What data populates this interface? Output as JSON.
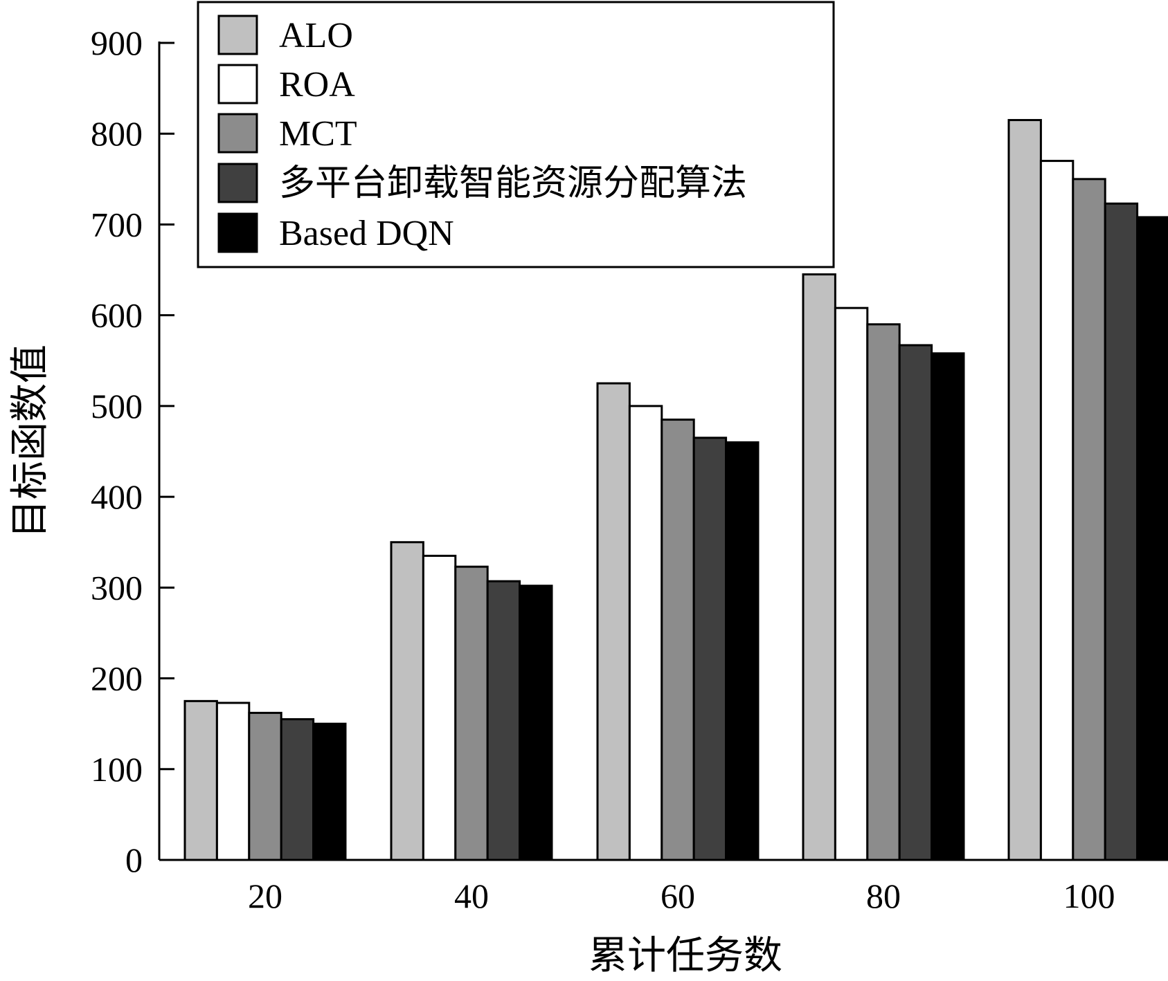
{
  "chart_data": {
    "type": "bar",
    "title": "",
    "xlabel": "累计任务数",
    "ylabel": "目标函数值",
    "categories": [
      "20",
      "40",
      "60",
      "80",
      "100"
    ],
    "ylim": [
      0,
      900
    ],
    "yticks": [
      0,
      100,
      200,
      300,
      400,
      500,
      600,
      700,
      800,
      900
    ],
    "grid": false,
    "legend_position": "top-left",
    "series": [
      {
        "name": "ALO",
        "color": "#c0c0c0",
        "values": [
          175,
          350,
          525,
          645,
          815
        ]
      },
      {
        "name": "ROA",
        "color": "#ffffff",
        "values": [
          173,
          335,
          500,
          608,
          770
        ]
      },
      {
        "name": "MCT",
        "color": "#8c8c8c",
        "values": [
          162,
          323,
          485,
          590,
          750
        ]
      },
      {
        "name": "多平台卸载智能资源分配算法",
        "color": "#404040",
        "values": [
          155,
          307,
          465,
          567,
          723
        ]
      },
      {
        "name": "Based DQN",
        "color": "#000000",
        "values": [
          150,
          302,
          460,
          558,
          708
        ]
      }
    ]
  }
}
